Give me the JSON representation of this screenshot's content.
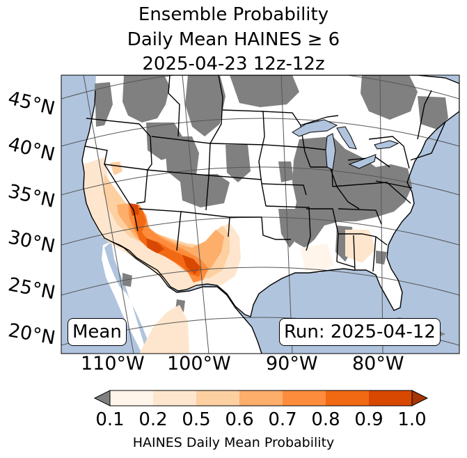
{
  "title_lines": [
    "Ensemble Probability",
    "Daily Mean HAINES ≥ 6",
    "2025-04-23 12z-12z"
  ],
  "lat_labels": [
    "45°N",
    "40°N",
    "35°N",
    "30°N",
    "25°N",
    "20°N"
  ],
  "lon_labels": [
    "110°W",
    "100°W",
    "90°W",
    "80°W"
  ],
  "left_box": "Mean",
  "right_box": "Run: 2025-04-12",
  "colorbar": {
    "label": "HAINES Daily Mean Probability",
    "tick_labels": [
      "0.1",
      "0.2",
      "0.5",
      "0.6",
      "0.7",
      "0.8",
      "0.9",
      "1.0"
    ],
    "colors": [
      "#fff5eb",
      "#fee6ce",
      "#fdd0a2",
      "#fdae6b",
      "#fd8d3c",
      "#f16913",
      "#d94801"
    ],
    "under_color": "#808080",
    "over_color": "#a63603"
  },
  "colors": {
    "ocean": "#b0c4de",
    "no_data": "#808080",
    "land": "#ffffff",
    "borders": "#000000",
    "gridlines": "#555555"
  }
}
